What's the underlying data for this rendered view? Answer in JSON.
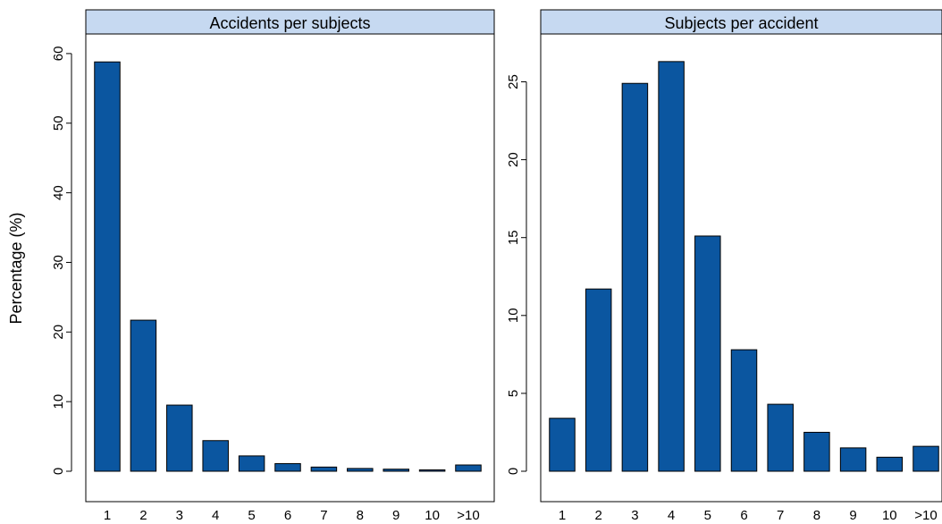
{
  "chart_data": [
    {
      "type": "bar",
      "title": "Accidents per subjects",
      "ylabel": "Percentage (%)",
      "categories": [
        "1",
        "2",
        "3",
        "4",
        "5",
        "6",
        "7",
        "8",
        "9",
        "10",
        ">10"
      ],
      "values": [
        58.8,
        21.7,
        9.5,
        4.4,
        2.2,
        1.1,
        0.6,
        0.4,
        0.3,
        0.2,
        0.9
      ],
      "ylim": [
        0,
        62
      ],
      "yticks": [
        0,
        10,
        20,
        30,
        40,
        50,
        60
      ],
      "grid": false,
      "colors": {
        "bar": "#0b56a0",
        "strip": "#c6d9f1"
      }
    },
    {
      "type": "bar",
      "title": "Subjects per accident",
      "ylabel": "",
      "categories": [
        "1",
        "2",
        "3",
        "4",
        "5",
        "6",
        "7",
        "8",
        "9",
        "10",
        ">10"
      ],
      "values": [
        3.4,
        11.7,
        24.9,
        26.3,
        15.1,
        7.8,
        4.3,
        2.5,
        1.5,
        0.9,
        1.6
      ],
      "ylim": [
        0,
        27
      ],
      "yticks": [
        0,
        5,
        10,
        15,
        20,
        25
      ],
      "grid": false,
      "colors": {
        "bar": "#0b56a0",
        "strip": "#c6d9f1"
      }
    }
  ]
}
